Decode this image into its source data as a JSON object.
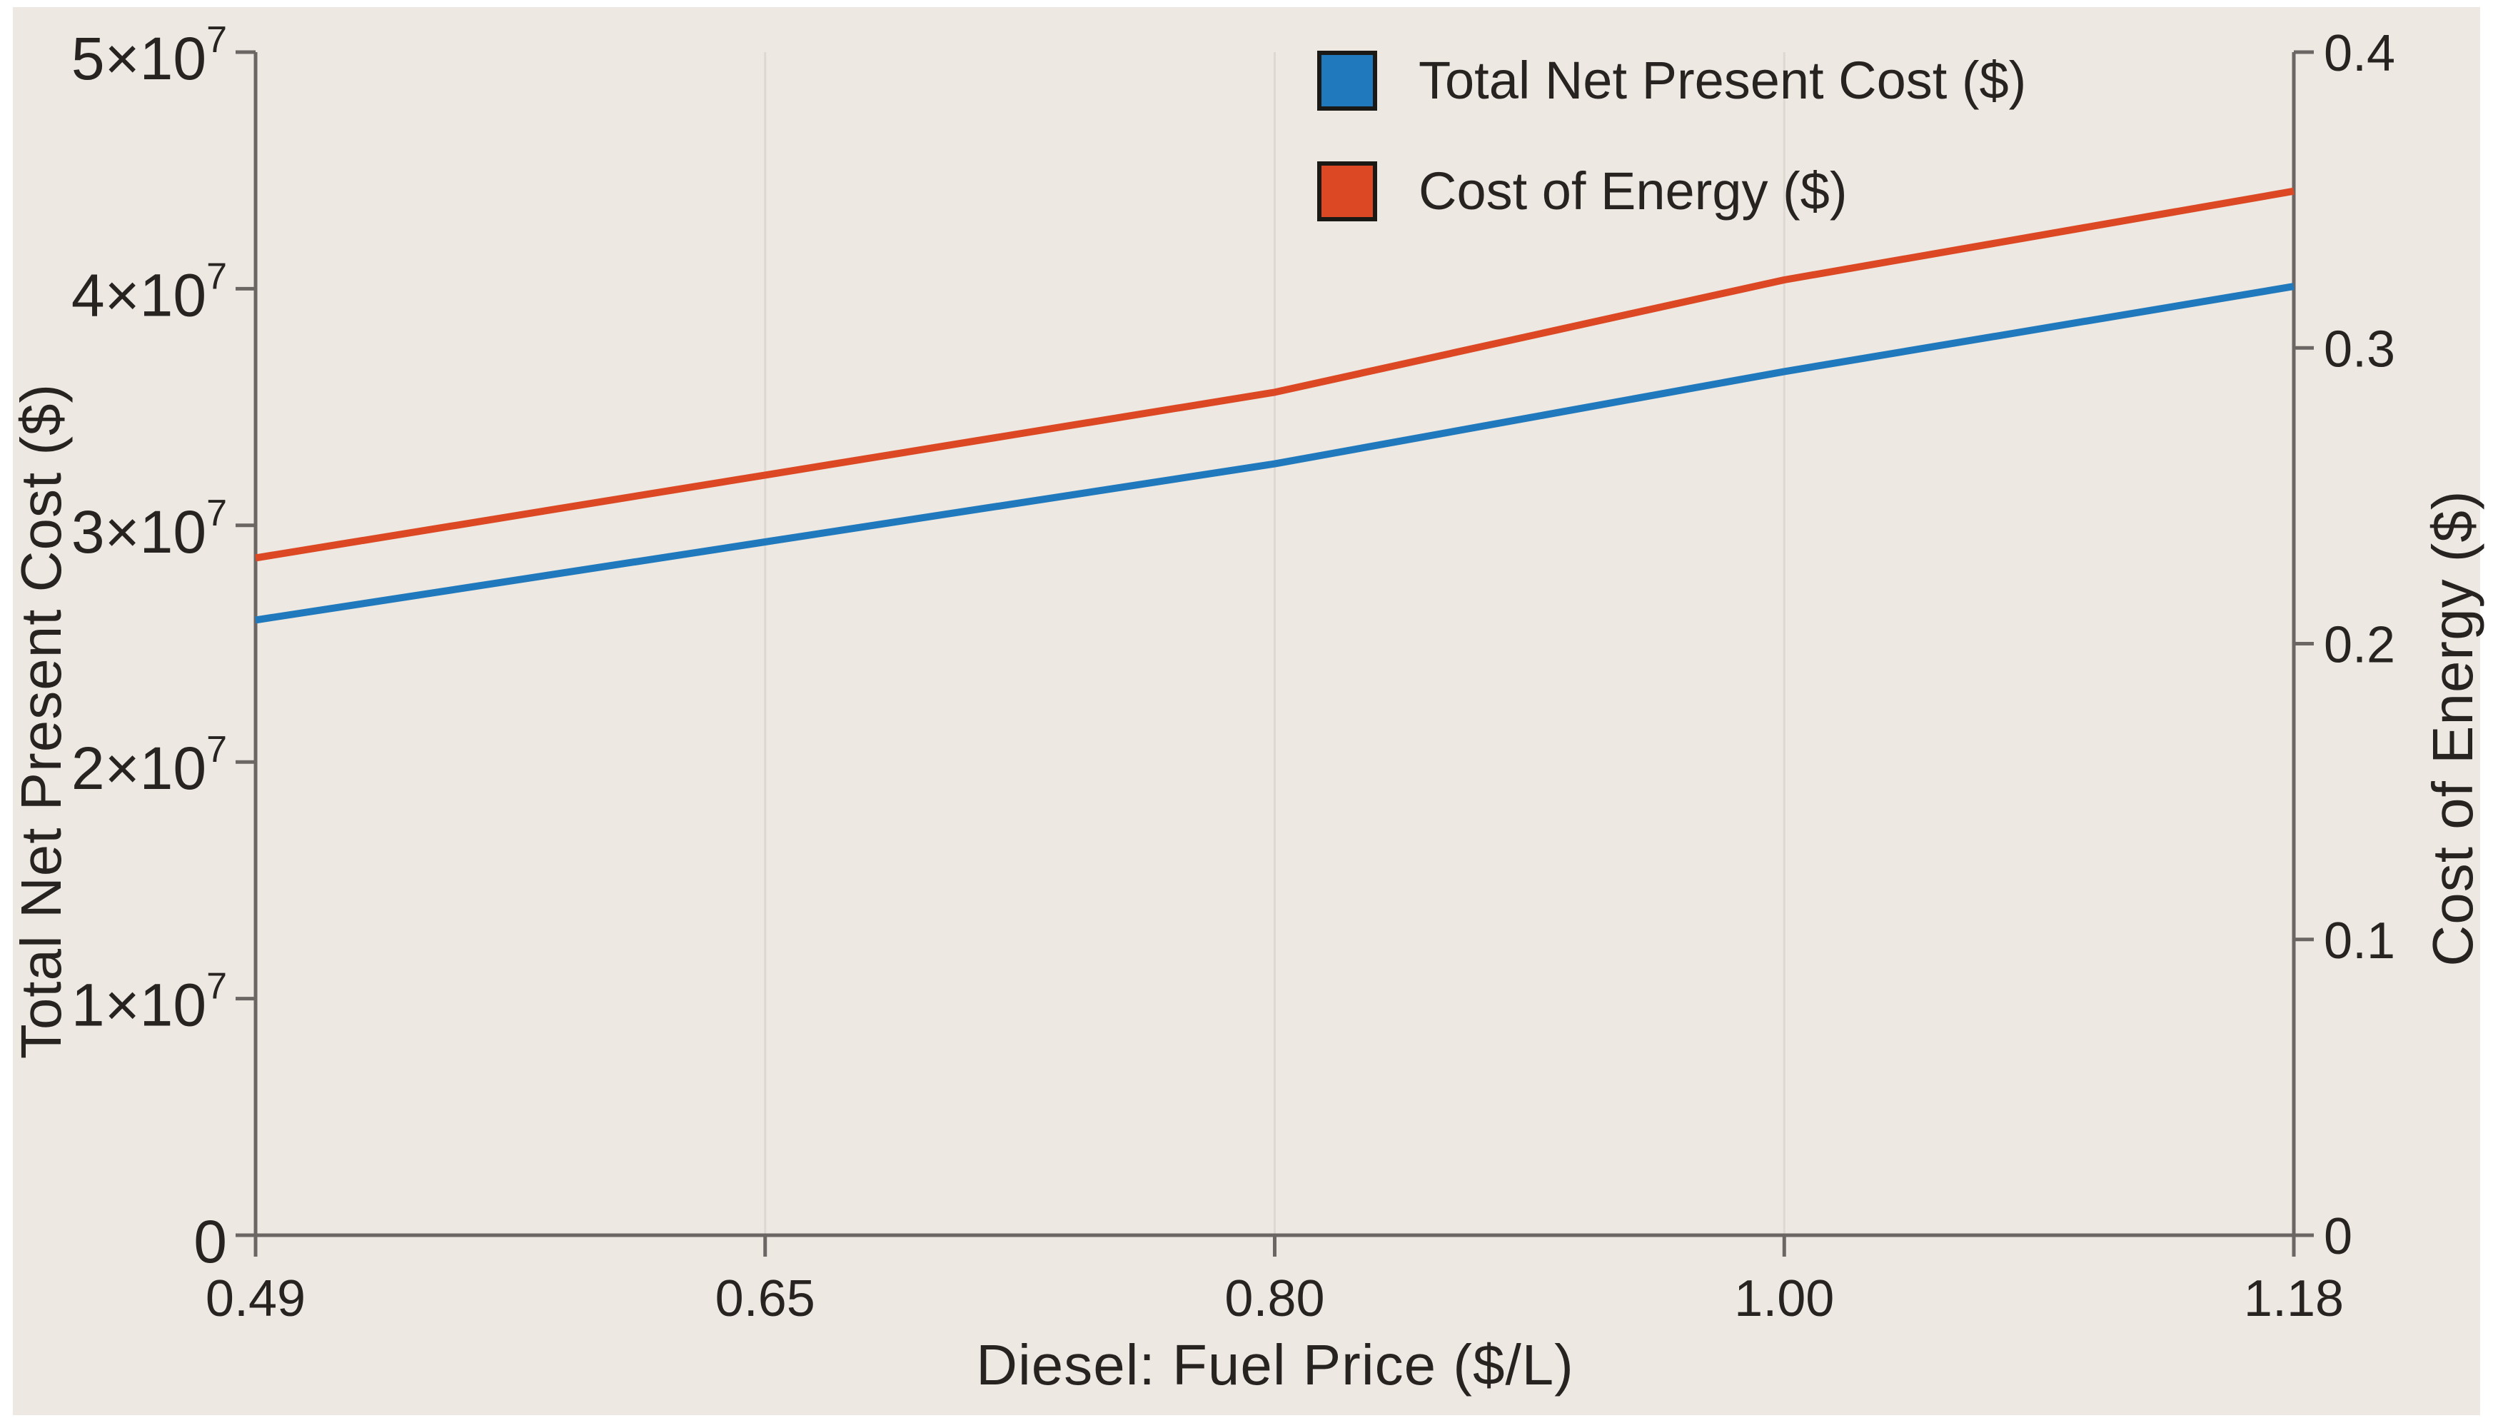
{
  "chart_data": {
    "type": "line",
    "title": "",
    "xlabel": "Diesel: Fuel Price ($/L)",
    "x": [
      0.49,
      0.65,
      0.8,
      1.0,
      1.18
    ],
    "x_tick_labels": [
      "0.49",
      "0.65",
      "0.80",
      "1.00",
      "1.18"
    ],
    "x_spacing": "equal-categories",
    "grid": "vertical-gridlines-at-interior-ticks",
    "background_color": "#ede8e2",
    "axis_color": "#6b6663",
    "gridline_color": "#ded8d2",
    "left_axis": {
      "label": "Total Net Present Cost ($)",
      "range": [
        0,
        50000000
      ],
      "tick_values": [
        0,
        10000000,
        20000000,
        30000000,
        40000000,
        50000000
      ],
      "tick_labels": [
        "0",
        "1×10⁷",
        "2×10⁷",
        "3×10⁷",
        "4×10⁷",
        "5×10⁷"
      ]
    },
    "right_axis": {
      "label": "Cost of Energy ($)",
      "range": [
        0,
        0.4
      ],
      "tick_values": [
        0,
        0.1,
        0.2,
        0.3,
        0.4
      ],
      "tick_labels": [
        "0",
        "0.1",
        "0.2",
        "0.3",
        "0.4"
      ]
    },
    "series": [
      {
        "name": "Total Net Present Cost ($)",
        "axis": "left",
        "color": "#1f79bc",
        "values": [
          26000000,
          29300000,
          32600000,
          36500000,
          40100000
        ]
      },
      {
        "name": "Cost of Energy ($)",
        "axis": "right",
        "color": "#dc4823",
        "values": [
          0.229,
          0.257,
          0.285,
          0.323,
          0.353
        ]
      }
    ],
    "legend": {
      "position": "top-center",
      "entries": [
        {
          "label": "Total Net Present Cost ($)",
          "color": "#1f79bc"
        },
        {
          "label": "Cost of Energy ($)",
          "color": "#dc4823"
        }
      ]
    }
  }
}
